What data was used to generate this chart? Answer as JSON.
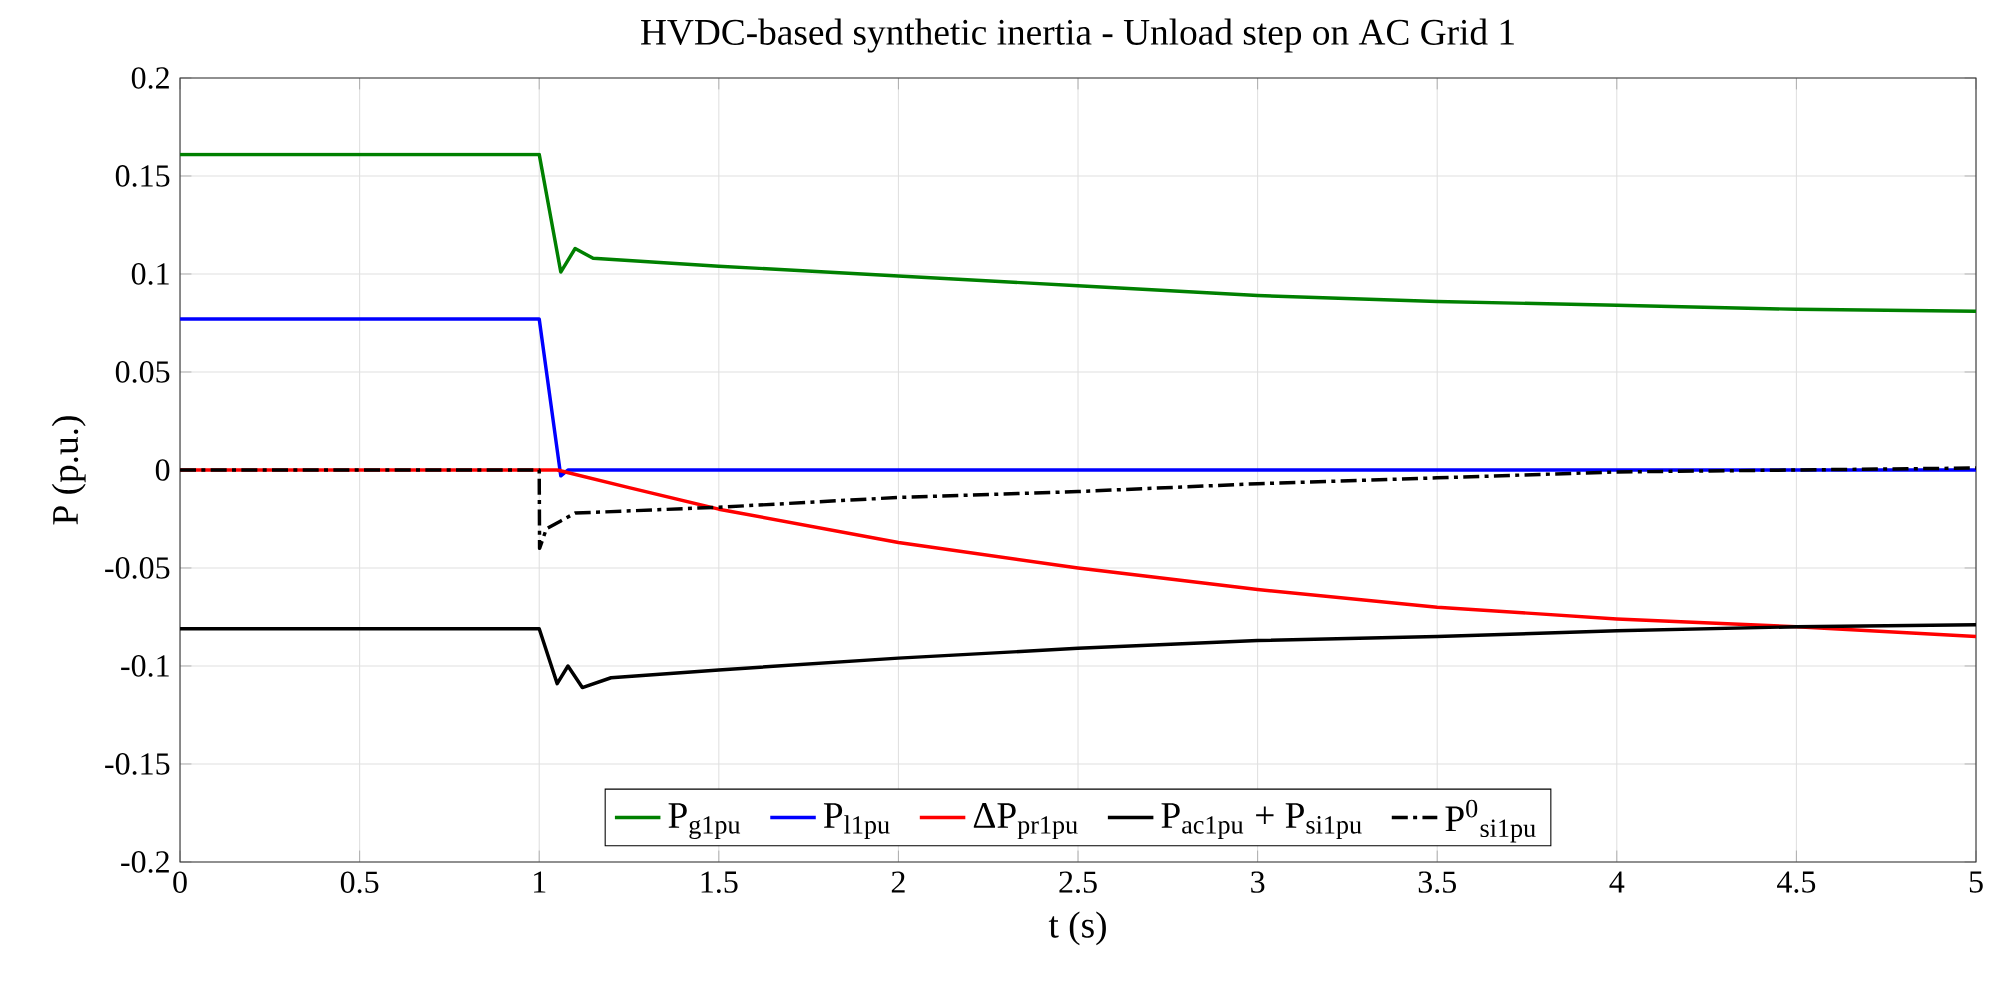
{
  "chart_data": {
    "type": "line",
    "title": "HVDC-based synthetic inertia - Unload step on AC Grid 1",
    "xlabel": "t (s)",
    "ylabel": "P (p.u.)",
    "xlim": [
      0,
      5
    ],
    "ylim": [
      -0.2,
      0.2
    ],
    "xticks": [
      0,
      0.5,
      1,
      1.5,
      2,
      2.5,
      3,
      3.5,
      4,
      4.5,
      5
    ],
    "yticks": [
      -0.2,
      -0.15,
      -0.1,
      -0.05,
      0,
      0.05,
      0.1,
      0.15,
      0.2
    ],
    "grid": true,
    "legend": "bottom",
    "series": [
      {
        "name": "P$_{g1pu}$",
        "color": "#008000",
        "x": [
          0,
          1,
          1.06,
          1.1,
          1.15,
          1.5,
          2,
          2.5,
          3,
          3.5,
          4,
          4.5,
          5
        ],
        "values": [
          0.161,
          0.161,
          0.101,
          0.113,
          0.108,
          0.104,
          0.099,
          0.094,
          0.089,
          0.086,
          0.084,
          0.082,
          0.081
        ]
      },
      {
        "name": "P$_{l1pu}$",
        "color": "#0000ff",
        "x": [
          0,
          1,
          1.06,
          1.08,
          5
        ],
        "values": [
          0.077,
          0.077,
          -0.003,
          0,
          0
        ]
      },
      {
        "name": "ΔP$_{pr1pu}$",
        "color": "#ff0000",
        "x": [
          0,
          1.05,
          1.25,
          1.5,
          2,
          2.5,
          3,
          3.5,
          4,
          4.5,
          5
        ],
        "values": [
          0,
          0,
          -0.009,
          -0.02,
          -0.037,
          -0.05,
          -0.061,
          -0.07,
          -0.076,
          -0.08,
          -0.085
        ]
      },
      {
        "name": "P$_{ac1pu}$ + P$_{si1pu}$",
        "color": "#000000",
        "x": [
          0,
          1,
          1.05,
          1.08,
          1.12,
          1.2,
          1.5,
          2,
          2.5,
          3,
          3.5,
          4,
          4.5,
          5
        ],
        "values": [
          -0.081,
          -0.081,
          -0.109,
          -0.1,
          -0.111,
          -0.106,
          -0.102,
          -0.096,
          -0.091,
          -0.087,
          -0.085,
          -0.082,
          -0.08,
          -0.079
        ]
      },
      {
        "name": "P$^{0}$$_{si1pu}$",
        "color": "#000000",
        "line_style": "dashdot",
        "x": [
          0,
          1,
          1.001,
          1.02,
          1.06,
          1.1,
          1.5,
          2,
          2.5,
          3,
          3.5,
          4,
          4.5,
          5
        ],
        "values": [
          0,
          0,
          -0.04,
          -0.03,
          -0.026,
          -0.022,
          -0.019,
          -0.014,
          -0.011,
          -0.007,
          -0.004,
          -0.001,
          0,
          0.001
        ]
      }
    ]
  }
}
